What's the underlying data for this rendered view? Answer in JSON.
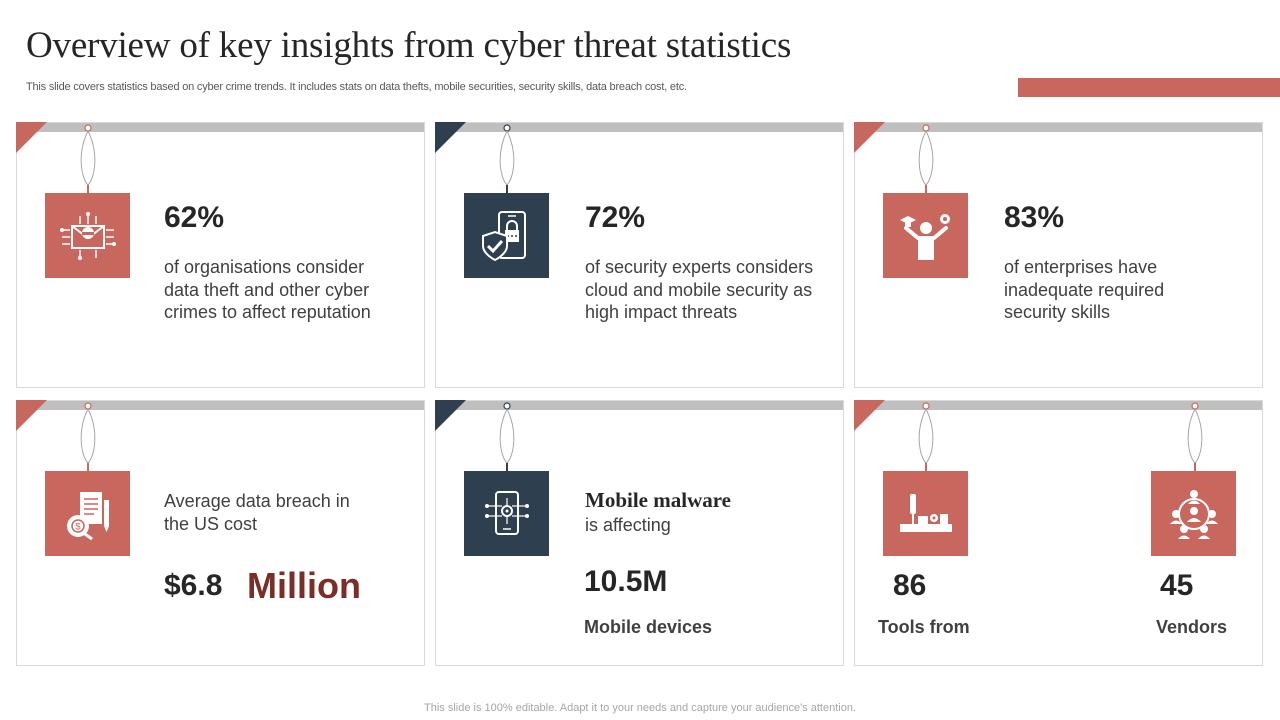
{
  "title": "Overview of key insights from cyber threat statistics",
  "subtitle": "This slide covers statistics based on cyber crime trends. It includes stats on data thefts, mobile securities, security skills, data breach cost, etc.",
  "colors": {
    "accent": "#c8675e",
    "dark": "#2e3f4f",
    "million": "#7a2e27",
    "topbar": "#bfbfbf"
  },
  "cards": [
    {
      "icon": "data-theft-icon",
      "stat": "62%",
      "lines": [
        "of organisations consider",
        "data theft and other cyber",
        "crimes to affect reputation"
      ]
    },
    {
      "icon": "mobile-security-icon",
      "stat": "72%",
      "lines": [
        "of security experts considers",
        "cloud and mobile security as",
        "high impact threats"
      ]
    },
    {
      "icon": "security-skills-icon",
      "stat": "83%",
      "lines": [
        "of enterprises have",
        "inadequate required",
        "security skills"
      ]
    },
    {
      "icon": "breach-cost-icon",
      "lines": [
        "Average data breach in",
        "the US cost"
      ],
      "value": "$6.8",
      "unit": "Million"
    },
    {
      "icon": "mobile-malware-icon",
      "heading": "Mobile malware",
      "line": "is affecting",
      "value": "10.5M",
      "label": "Mobile devices"
    },
    {
      "icons": [
        "tools-icon",
        "vendors-icon"
      ],
      "tools_value": "86",
      "tools_label": "Tools from",
      "vendors_value": "45",
      "vendors_label": "Vendors"
    }
  ],
  "footer": "This slide is 100% editable. Adapt it to your needs and capture your audience's attention."
}
